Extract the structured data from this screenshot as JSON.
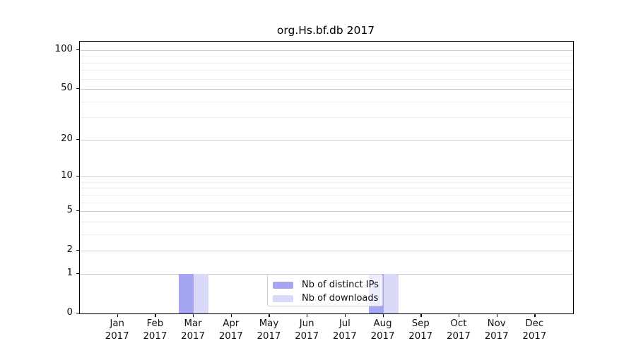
{
  "chart_data": {
    "type": "bar",
    "title": "org.Hs.bf.db 2017",
    "categories": [
      "Jan",
      "Feb",
      "Mar",
      "Apr",
      "May",
      "Jun",
      "Jul",
      "Aug",
      "Sep",
      "Oct",
      "Nov",
      "Dec"
    ],
    "category_year": "2017",
    "series": [
      {
        "name": "Nb of distinct IPs",
        "color": "#a5a5f1",
        "values": [
          0,
          0,
          1,
          0,
          0,
          0,
          0,
          1,
          0,
          0,
          0,
          0
        ]
      },
      {
        "name": "Nb of downloads",
        "color": "#d9d9f8",
        "values": [
          0,
          0,
          1,
          0,
          0,
          0,
          0,
          1,
          0,
          0,
          0,
          0
        ]
      }
    ],
    "yticks": [
      0,
      1,
      2,
      5,
      10,
      20,
      50,
      100
    ],
    "minor_yticks": [
      3,
      4,
      6,
      7,
      8,
      9,
      30,
      40,
      60,
      70,
      80,
      90
    ],
    "ylim": [
      0,
      116
    ],
    "yscale": "log1p",
    "grid": "horizontal",
    "legend_position": "lower-center"
  },
  "colors": {
    "major_grid": "#cccccc",
    "minor_grid": "#ededed",
    "spine": "#000000",
    "legend_border": "#cccccc"
  }
}
